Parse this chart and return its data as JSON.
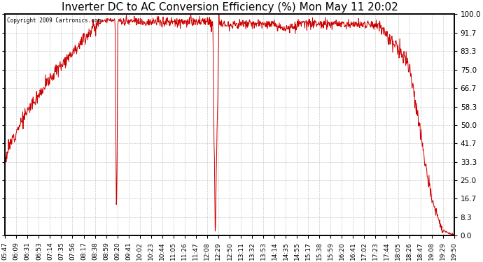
{
  "title": "Inverter DC to AC Conversion Efficiency (%) Mon May 11 20:02",
  "copyright": "Copyright 2009 Cartronics.com",
  "background_color": "#ffffff",
  "plot_bg_color": "#ffffff",
  "line_color": "#cc0000",
  "grid_color": "#bbbbbb",
  "yticks": [
    0.0,
    8.3,
    16.7,
    25.0,
    33.3,
    41.7,
    50.0,
    58.3,
    66.7,
    75.0,
    83.3,
    91.7,
    100.0
  ],
  "ylim": [
    0.0,
    100.0
  ],
  "xlabel_fontsize": 6.5,
  "ylabel_fontsize": 7.5,
  "title_fontsize": 11,
  "x_tick_rotation": 90,
  "time_labels": [
    "05:47",
    "06:09",
    "06:31",
    "06:53",
    "07:14",
    "07:35",
    "07:56",
    "08:17",
    "08:38",
    "08:59",
    "09:20",
    "09:41",
    "10:02",
    "10:23",
    "10:44",
    "11:05",
    "11:26",
    "11:47",
    "12:08",
    "12:29",
    "12:50",
    "13:11",
    "13:32",
    "13:53",
    "14:14",
    "14:35",
    "14:55",
    "15:17",
    "15:38",
    "15:59",
    "16:20",
    "16:41",
    "17:02",
    "17:23",
    "17:44",
    "18:05",
    "18:26",
    "18:47",
    "19:08",
    "19:29",
    "19:50"
  ]
}
